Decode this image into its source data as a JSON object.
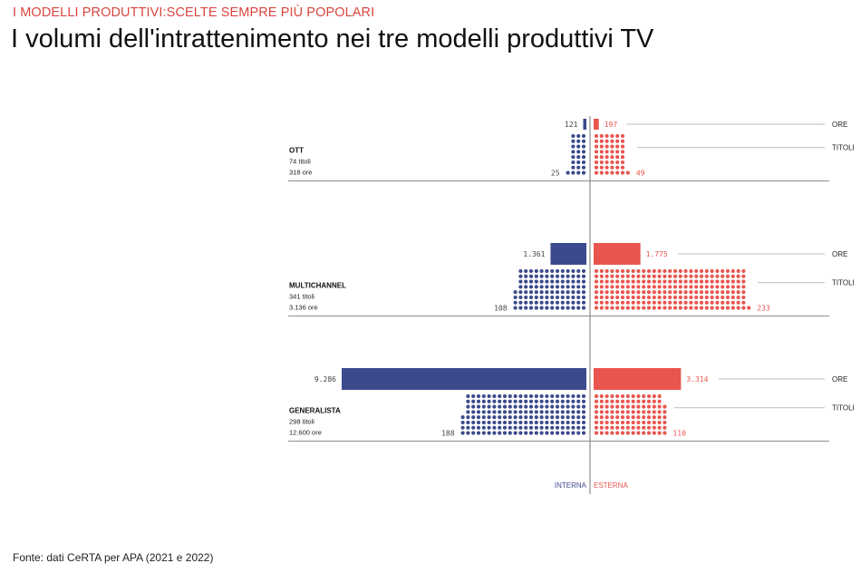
{
  "header": {
    "kicker": "I MODELLI PRODUTTIVI:SCELTE SEMPRE PIÙ POPOLARI",
    "title": "I volumi dell'intrattenimento nei tre modelli produttivi TV"
  },
  "footer": {
    "source": "Fonte: dati CeRTA per APA (2021 e 2022)"
  },
  "colors": {
    "interna": "#3b4a8c",
    "esterna": "#e8554e",
    "text": "#111111",
    "line": "#999999"
  },
  "chart_data": {
    "type": "bar",
    "subtype": "diverging bar + dot matrix (one dot per title)",
    "x_labels": {
      "interna": "INTERNA",
      "esterna": "ESTERNA"
    },
    "row_labels": {
      "hours": "ORE",
      "titles": "TITOLI"
    },
    "groups": [
      {
        "name": "OTT",
        "titoli_label": "74  titoli",
        "ore_label": "318  ore",
        "hours": {
          "interna": 121,
          "esterna": 197,
          "interna_label": "121",
          "esterna_label": "197"
        },
        "titles": {
          "interna": 25,
          "esterna": 49,
          "interna_label": "25",
          "esterna_label": "49"
        }
      },
      {
        "name": "MULTICHANNEL",
        "titoli_label": "341  titoli",
        "ore_label": "3.136  ore",
        "hours": {
          "interna": 1361,
          "esterna": 1775,
          "interna_label": "1.361",
          "esterna_label": "1.775"
        },
        "titles": {
          "interna": 108,
          "esterna": 233,
          "interna_label": "108",
          "esterna_label": "233"
        }
      },
      {
        "name": "GENERALISTA",
        "titoli_label": "298  titoli",
        "ore_label": "12.600  ore",
        "hours": {
          "interna": 9286,
          "esterna": 3314,
          "interna_label": "9.286",
          "esterna_label": "3.314"
        },
        "titles": {
          "interna": 188,
          "esterna": 110,
          "interna_label": "188",
          "esterna_label": "110"
        }
      }
    ]
  }
}
